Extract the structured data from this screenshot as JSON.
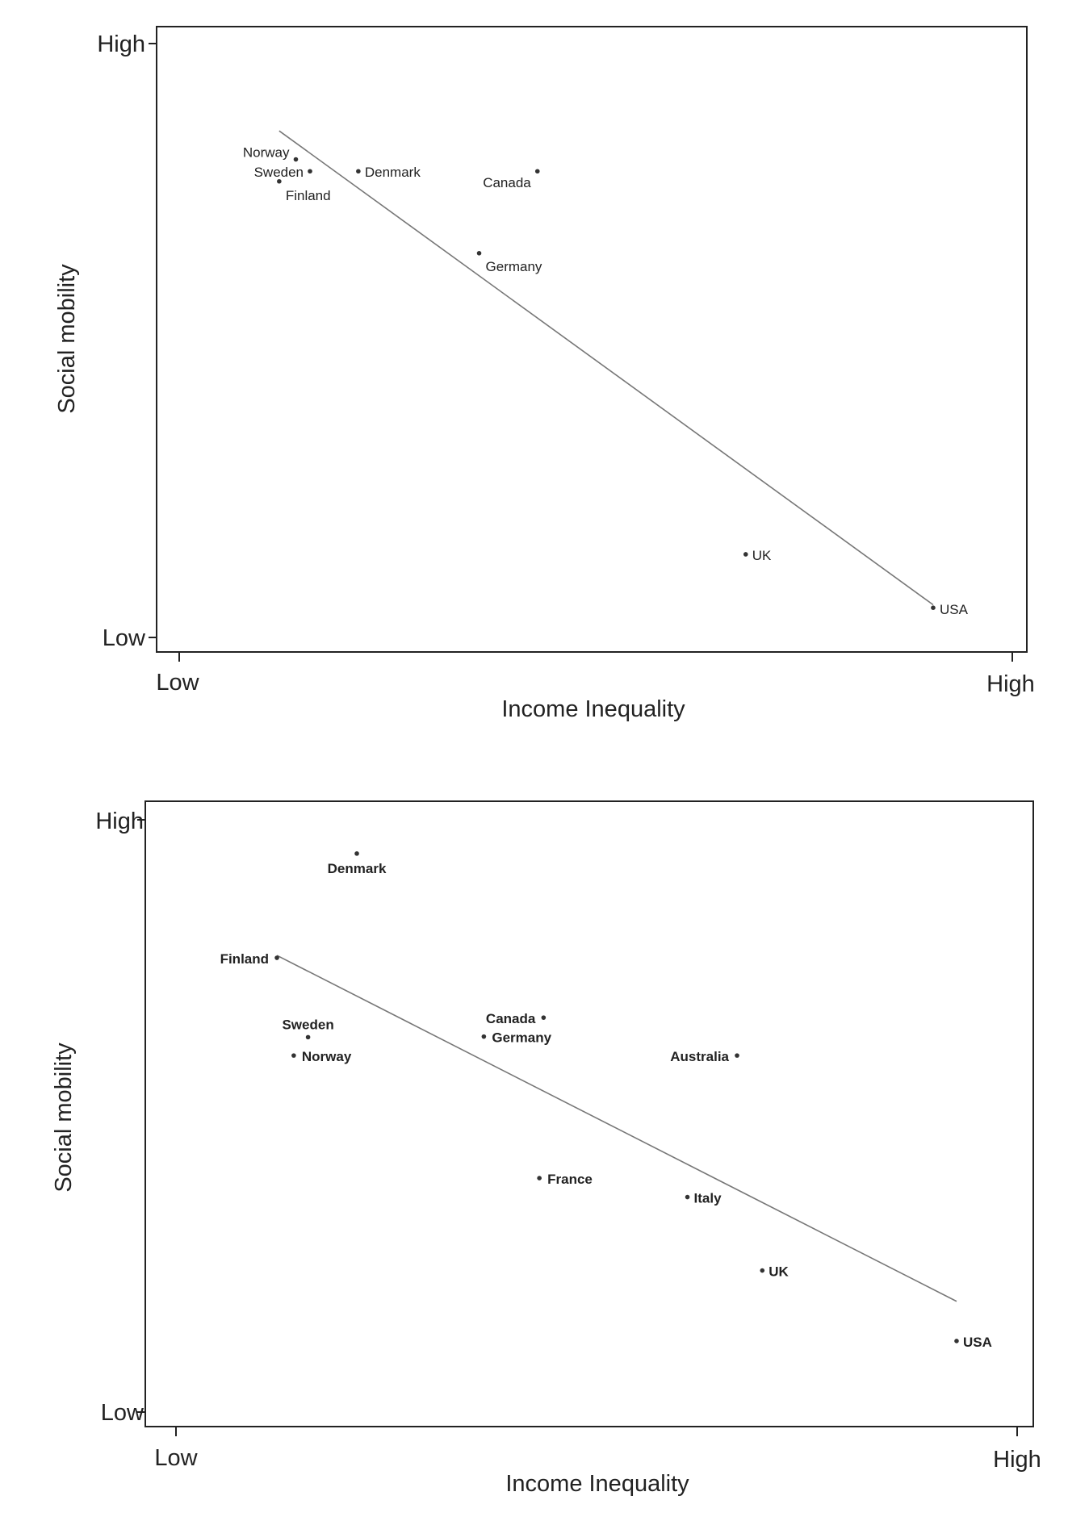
{
  "chart_data": [
    {
      "type": "scatter",
      "xlabel": "Income Inequality",
      "ylabel": "Social mobility",
      "x_ticks": [
        "Low",
        "High"
      ],
      "y_ticks": [
        "High",
        "Low"
      ],
      "xlim": [
        0,
        1
      ],
      "ylim": [
        0,
        1
      ],
      "grid": false,
      "points": [
        {
          "label": "Norway",
          "x": 0.14,
          "y": 0.805
        },
        {
          "label": "Sweden",
          "x": 0.157,
          "y": 0.785
        },
        {
          "label": "Finland",
          "x": 0.12,
          "y": 0.768
        },
        {
          "label": "Denmark",
          "x": 0.215,
          "y": 0.785
        },
        {
          "label": "Canada",
          "x": 0.43,
          "y": 0.785
        },
        {
          "label": "Germany",
          "x": 0.36,
          "y": 0.647
        },
        {
          "label": "UK",
          "x": 0.68,
          "y": 0.14
        },
        {
          "label": "USA",
          "x": 0.905,
          "y": 0.05
        }
      ],
      "trendline": {
        "x": [
          0.12,
          0.905
        ],
        "y": [
          0.853,
          0.055
        ]
      }
    },
    {
      "type": "scatter",
      "xlabel": "Income Inequality",
      "ylabel": "Social mobility",
      "x_ticks": [
        "Low",
        "High"
      ],
      "y_ticks": [
        "High",
        "Low"
      ],
      "xlim": [
        0,
        1
      ],
      "ylim": [
        0,
        1
      ],
      "grid": false,
      "points": [
        {
          "label": "Denmark",
          "x": 0.215,
          "y": 0.943
        },
        {
          "label": "Finland",
          "x": 0.12,
          "y": 0.767
        },
        {
          "label": "Sweden",
          "x": 0.157,
          "y": 0.633
        },
        {
          "label": "Norway",
          "x": 0.14,
          "y": 0.602
        },
        {
          "label": "Canada",
          "x": 0.437,
          "y": 0.666
        },
        {
          "label": "Germany",
          "x": 0.366,
          "y": 0.634
        },
        {
          "label": "Australia",
          "x": 0.667,
          "y": 0.602
        },
        {
          "label": "France",
          "x": 0.432,
          "y": 0.395
        },
        {
          "label": "Italy",
          "x": 0.608,
          "y": 0.363
        },
        {
          "label": "UK",
          "x": 0.697,
          "y": 0.239
        },
        {
          "label": "USA",
          "x": 0.928,
          "y": 0.12
        }
      ],
      "trendline": {
        "x": [
          0.12,
          0.928
        ],
        "y": [
          0.771,
          0.187
        ]
      }
    }
  ]
}
